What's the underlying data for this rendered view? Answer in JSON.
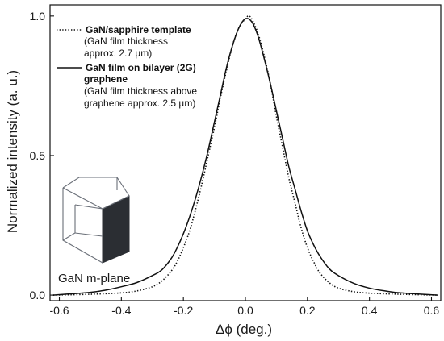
{
  "chart_data": {
    "type": "line",
    "title": "",
    "xlabel": "Δϕ (deg.)",
    "ylabel": "Normalized intensity (a. u.)",
    "xlim": [
      -0.63,
      0.63
    ],
    "ylim": [
      -0.02,
      1.04
    ],
    "x_ticks": [
      -0.6,
      -0.4,
      -0.2,
      0.0,
      0.2,
      0.4,
      0.6
    ],
    "x_tick_labels": [
      "-0.6",
      "-0.4",
      "-0.2",
      "0.0",
      "0.2",
      "0.4",
      "0.6"
    ],
    "y_ticks": [
      0.0,
      0.5,
      1.0
    ],
    "y_tick_labels": [
      "0.0",
      "0.5",
      "1.0"
    ],
    "grid": false,
    "legend_position": "top-left",
    "series": [
      {
        "name": "GaN/sapphire template",
        "note": "(GaN film thickness approx. 2.7 µm)",
        "style": "dotted",
        "color": "#111111",
        "x": [
          -0.62,
          -0.5,
          -0.4,
          -0.35,
          -0.3,
          -0.27,
          -0.24,
          -0.22,
          -0.2,
          -0.18,
          -0.16,
          -0.14,
          -0.12,
          -0.1,
          -0.08,
          -0.06,
          -0.04,
          -0.02,
          0.0,
          0.01,
          0.02,
          0.04,
          0.06,
          0.08,
          0.1,
          0.12,
          0.14,
          0.16,
          0.18,
          0.2,
          0.22,
          0.24,
          0.27,
          0.3,
          0.35,
          0.4,
          0.5,
          0.62
        ],
        "y": [
          0.0,
          0.003,
          0.008,
          0.015,
          0.03,
          0.05,
          0.085,
          0.12,
          0.17,
          0.23,
          0.31,
          0.4,
          0.5,
          0.6,
          0.71,
          0.81,
          0.9,
          0.96,
          0.99,
          1.0,
          0.99,
          0.94,
          0.86,
          0.76,
          0.64,
          0.53,
          0.42,
          0.33,
          0.24,
          0.17,
          0.12,
          0.08,
          0.045,
          0.025,
          0.012,
          0.007,
          0.003,
          0.0
        ]
      },
      {
        "name": "GaN film on bilayer (2G) graphene",
        "note": "(GaN film thickness above graphene approx. 2.5 µm)",
        "style": "solid",
        "color": "#111111",
        "x": [
          -0.62,
          -0.5,
          -0.45,
          -0.4,
          -0.35,
          -0.3,
          -0.27,
          -0.24,
          -0.22,
          -0.2,
          -0.18,
          -0.16,
          -0.14,
          -0.12,
          -0.1,
          -0.08,
          -0.06,
          -0.04,
          -0.02,
          0.0,
          0.02,
          0.04,
          0.06,
          0.08,
          0.1,
          0.12,
          0.14,
          0.16,
          0.18,
          0.2,
          0.22,
          0.24,
          0.27,
          0.3,
          0.35,
          0.4,
          0.45,
          0.5,
          0.62
        ],
        "y": [
          0.0,
          0.01,
          0.018,
          0.03,
          0.045,
          0.07,
          0.09,
          0.13,
          0.17,
          0.22,
          0.28,
          0.35,
          0.43,
          0.52,
          0.62,
          0.72,
          0.82,
          0.9,
          0.96,
          0.99,
          0.98,
          0.93,
          0.85,
          0.76,
          0.66,
          0.56,
          0.46,
          0.38,
          0.3,
          0.23,
          0.18,
          0.14,
          0.095,
          0.07,
          0.042,
          0.025,
          0.015,
          0.008,
          0.0
        ]
      }
    ],
    "annotations": [
      {
        "text": "GaN m-plane"
      }
    ]
  }
}
